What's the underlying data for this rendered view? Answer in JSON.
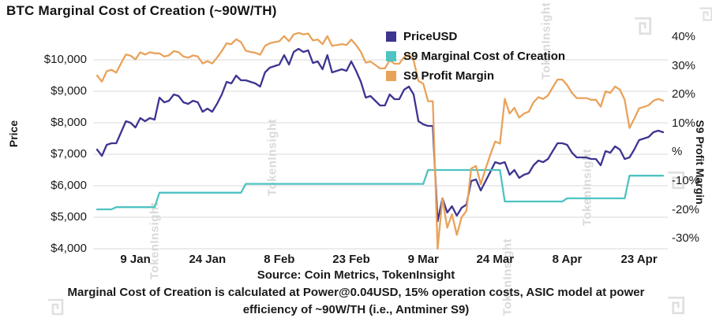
{
  "title": "BTC Marginal Cost of Creation (~90W/TH)",
  "source": "Source: Coin Metrics, TokenInsight",
  "caption_line1": "Marginal Cost of Creation is calculated at Power@0.04USD, 15% operation costs, ASIC model at power",
  "caption_line2": "efficiency of ~90W/TH (i.e., Antminer S9)",
  "watermark": "TokenInsight",
  "colors": {
    "price": "#3d3590",
    "cost": "#4ec3c1",
    "margin": "#e9a25a",
    "grid": "#d9d9d9"
  },
  "chart_data": {
    "type": "line",
    "title": "BTC Marginal Cost of Creation (~90W/TH)",
    "grid": "horizontal",
    "legend_position": "top-center",
    "xlabel": "",
    "x": {
      "n_points": 119,
      "tick_labels": [
        "9 Jan",
        "24 Jan",
        "8 Feb",
        "23 Feb",
        "9 Mar",
        "24 Mar",
        "8 Apr",
        "23 Apr"
      ],
      "tick_index": [
        8,
        23,
        38,
        53,
        68,
        83,
        98,
        113
      ]
    },
    "left_axis": {
      "label": "Price",
      "ticks": [
        10000,
        9000,
        8000,
        7000,
        6000,
        5000,
        4000
      ],
      "tick_labels": [
        "$10,000",
        "$9,000",
        "$8,000",
        "$7,000",
        "$6,000",
        "$5,000",
        "$4,000"
      ],
      "ylim": [
        4000,
        10900
      ]
    },
    "right_axis": {
      "label": "S9 Profit Margin",
      "ticks": [
        40,
        30,
        20,
        10,
        0,
        -10,
        -20,
        -30
      ],
      "tick_labels": [
        "40%",
        "30%",
        "20%",
        "10%",
        "%",
        "-10%",
        "-20%",
        "-30%"
      ],
      "ylim": [
        -33.5,
        41.9
      ]
    },
    "series": [
      {
        "name": "PriceUSD",
        "axis": "left",
        "color": "#3d3590",
        "data_name": "priceusd-line",
        "values": [
          7150,
          6950,
          7300,
          7350,
          7350,
          7700,
          8050,
          8000,
          7850,
          8150,
          8050,
          8150,
          8100,
          8800,
          8650,
          8700,
          8900,
          8850,
          8650,
          8600,
          8700,
          8650,
          8350,
          8450,
          8350,
          8600,
          8900,
          9300,
          9250,
          9500,
          9350,
          9350,
          9300,
          9250,
          9150,
          9600,
          9750,
          9800,
          9850,
          10150,
          9850,
          10250,
          10350,
          10250,
          10300,
          9900,
          9950,
          9700,
          10150,
          9600,
          9650,
          9700,
          9650,
          9950,
          9650,
          9300,
          8800,
          8850,
          8700,
          8550,
          8550,
          8900,
          8750,
          8750,
          9050,
          9150,
          8900,
          8050,
          7950,
          7900,
          7900,
          4870,
          5600,
          5150,
          5350,
          5050,
          5300,
          5400,
          6150,
          6200,
          5850,
          6150,
          6450,
          6750,
          6700,
          6750,
          6350,
          6500,
          6250,
          6350,
          6400,
          6650,
          6800,
          6750,
          6850,
          7100,
          7350,
          7350,
          7300,
          7050,
          6900,
          6900,
          6900,
          6850,
          6850,
          6650,
          7100,
          7050,
          7250,
          7150,
          6850,
          6900,
          7150,
          7450,
          7500,
          7550,
          7700,
          7750,
          7700
        ]
      },
      {
        "name": "S9 Marginal Cost of Creation",
        "axis": "left",
        "color": "#4ec3c1",
        "data_name": "marginal-cost-line",
        "values": [
          5250,
          5250,
          5250,
          5250,
          5320,
          5320,
          5320,
          5320,
          5320,
          5320,
          5320,
          5320,
          5320,
          5780,
          5780,
          5780,
          5780,
          5780,
          5780,
          5780,
          5780,
          5780,
          5780,
          5780,
          5780,
          5780,
          5780,
          5780,
          5780,
          5780,
          5780,
          6060,
          6060,
          6060,
          6060,
          6060,
          6060,
          6060,
          6060,
          6060,
          6060,
          6060,
          6060,
          6060,
          6060,
          6060,
          6060,
          6060,
          6060,
          6060,
          6060,
          6060,
          6060,
          6060,
          6060,
          6060,
          6060,
          6060,
          6060,
          6060,
          6060,
          6060,
          6060,
          6060,
          6060,
          6060,
          6060,
          6060,
          6060,
          6500,
          6500,
          6500,
          6500,
          6500,
          6500,
          6500,
          6500,
          6500,
          6500,
          6500,
          6500,
          6500,
          6500,
          6500,
          6500,
          5500,
          5500,
          5500,
          5500,
          5500,
          5500,
          5500,
          5500,
          5500,
          5500,
          5500,
          5500,
          5500,
          5600,
          5600,
          5600,
          5600,
          5600,
          5600,
          5600,
          5600,
          5600,
          5600,
          5600,
          5600,
          5600,
          6320,
          6320,
          6320,
          6320,
          6320,
          6320,
          6320,
          6320
        ]
      },
      {
        "name": "S9 Profit Margin",
        "axis": "right",
        "color": "#e9a25a",
        "data_name": "profit-margin-line",
        "values": [
          26.6,
          24.5,
          28.1,
          28.6,
          27.6,
          30.9,
          33.9,
          33.5,
          32.2,
          34.7,
          33.9,
          34.7,
          34.3,
          34.3,
          33.2,
          33.6,
          35.1,
          34.7,
          33.2,
          32.8,
          33.6,
          33.2,
          30.8,
          31.6,
          30.8,
          32.8,
          35.1,
          37.8,
          37.5,
          39.2,
          38.2,
          35.2,
          34.8,
          34.5,
          33.8,
          36.9,
          37.8,
          38.2,
          38.5,
          40.3,
          38.5,
          40.9,
          41.4,
          40.9,
          41.2,
          38.8,
          39.1,
          37.5,
          40.3,
          36.9,
          37.2,
          37.5,
          37.2,
          39.1,
          37.2,
          34.8,
          31.1,
          31.5,
          30.3,
          29.1,
          29.1,
          31.9,
          30.7,
          30.7,
          33.0,
          33.8,
          31.9,
          24.7,
          23.8,
          17.7,
          17.7,
          -33.5,
          -16.1,
          -26.2,
          -21.5,
          -28.7,
          -22.6,
          -20.4,
          -5.7,
          -4.8,
          -11.1,
          -5.7,
          -0.8,
          3.7,
          3.0,
          18.5,
          13.4,
          15.4,
          12.0,
          13.4,
          14.1,
          17.3,
          19.1,
          18.5,
          19.7,
          22.5,
          25.2,
          25.2,
          23.3,
          20.6,
          18.8,
          18.8,
          18.8,
          18.2,
          18.2,
          15.8,
          21.1,
          20.6,
          22.8,
          21.7,
          18.2,
          8.4,
          11.6,
          15.2,
          15.7,
          16.3,
          17.9,
          18.5,
          17.9
        ]
      }
    ]
  }
}
